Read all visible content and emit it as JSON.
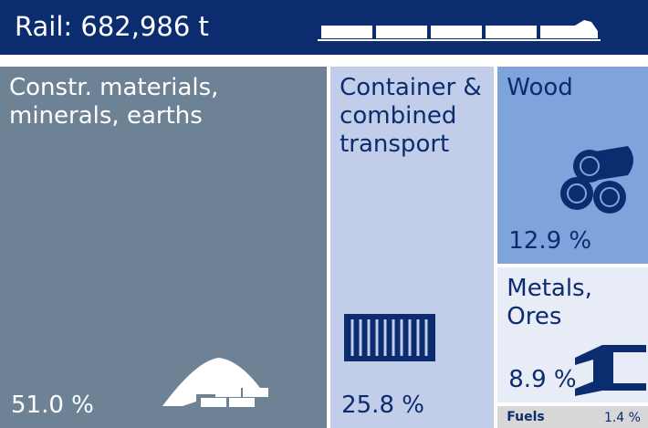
{
  "chart_data": {
    "type": "treemap",
    "title": "Rail: 682,986 t",
    "categories": [
      "Constr. materials, minerals, earths",
      "Container & combined transport",
      "Wood",
      "Metals, Ores",
      "Fuels"
    ],
    "values": [
      51.0,
      25.8,
      12.9,
      8.9,
      1.4
    ],
    "value_labels": [
      "51.0 %",
      "25.8 %",
      "12.9 %",
      "8.9 %",
      "1.4 %"
    ],
    "colors": [
      "#6e8296",
      "#c1cde9",
      "#7fa4dc",
      "#e8ecf6",
      "#d7d7d7"
    ]
  }
}
